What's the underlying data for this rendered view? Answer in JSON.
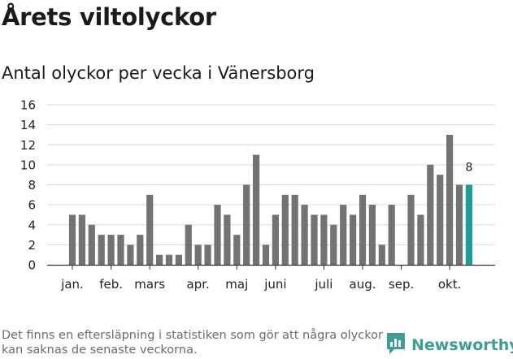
{
  "header": {
    "title": "Årets viltolyckor",
    "subtitle": "Antal olyckor per vecka i Vänersborg"
  },
  "footer": {
    "note": "Det finns en eftersläpning i statistiken som gör att några olyckor kan saknas de senaste veckorna.",
    "brand": "Newsworthy"
  },
  "colors": {
    "bar": "#737373",
    "highlight": "#1a9e96",
    "grid": "#d9d9d9",
    "brand": "#3f9e92"
  },
  "chart_data": {
    "type": "bar",
    "title": "Årets viltolyckor",
    "subtitle": "Antal olyckor per vecka i Vänersborg",
    "values": [
      5,
      5,
      4,
      3,
      3,
      3,
      2,
      3,
      7,
      1,
      1,
      1,
      4,
      2,
      2,
      6,
      5,
      3,
      8,
      11,
      2,
      5,
      7,
      7,
      6,
      5,
      5,
      4,
      6,
      5,
      7,
      6,
      2,
      6,
      0,
      7,
      5,
      10,
      9,
      13,
      8,
      8
    ],
    "highlight_index": 41,
    "highlight_label": "8",
    "x_ticks": [
      {
        "label": "jan.",
        "week": 1
      },
      {
        "label": "feb.",
        "week": 5
      },
      {
        "label": "mars",
        "week": 9
      },
      {
        "label": "apr.",
        "week": 14
      },
      {
        "label": "maj",
        "week": 18
      },
      {
        "label": "juni",
        "week": 22
      },
      {
        "label": "juli",
        "week": 27
      },
      {
        "label": "aug.",
        "week": 31
      },
      {
        "label": "sep.",
        "week": 35
      },
      {
        "label": "okt.",
        "week": 40
      }
    ],
    "y_ticks": [
      0,
      2,
      4,
      6,
      8,
      10,
      12,
      14,
      16
    ],
    "ylim": [
      0,
      16
    ],
    "grid": true,
    "xlabel": "",
    "ylabel": ""
  }
}
